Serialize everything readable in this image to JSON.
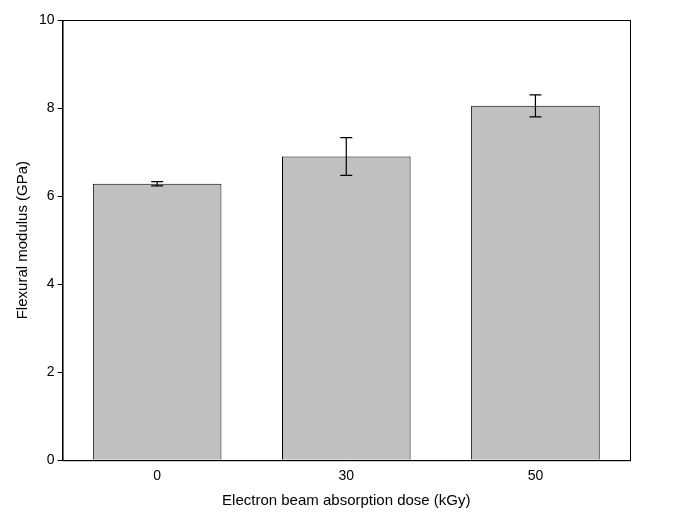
{
  "chart_data": {
    "type": "bar",
    "x_label": "Electron beam absorption dose (kGy)",
    "y_label": "Flexural modulus (GPa)",
    "categories": [
      "0",
      "30",
      "50"
    ],
    "values": [
      6.28,
      6.9,
      8.05
    ],
    "errors": [
      0.05,
      0.43,
      0.25
    ],
    "color": "#c0c0c0",
    "ylim": [
      0,
      10
    ],
    "yticks": [
      0,
      2,
      4,
      6,
      8,
      10
    ],
    "grid": false
  }
}
